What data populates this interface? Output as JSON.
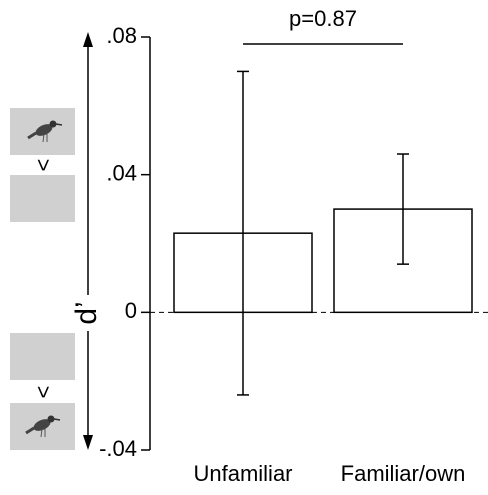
{
  "chart_data": {
    "type": "bar",
    "categories": [
      "Unfamiliar",
      "Familiar/own"
    ],
    "values": [
      0.023,
      0.03
    ],
    "errors": [
      0.047,
      0.016
    ],
    "color": "#ffffff",
    "ylabel": "d’",
    "annotation": "p=0.87",
    "symbols": [
      ">",
      ">"
    ],
    "ylim": [
      -0.04,
      0.08
    ],
    "yticks": [
      {
        "value": -0.04,
        "label": "-.04"
      },
      0,
      {
        "value": 0.04,
        "label": ".04"
      },
      {
        "value": 0.08,
        "label": ".08"
      }
    ]
  }
}
